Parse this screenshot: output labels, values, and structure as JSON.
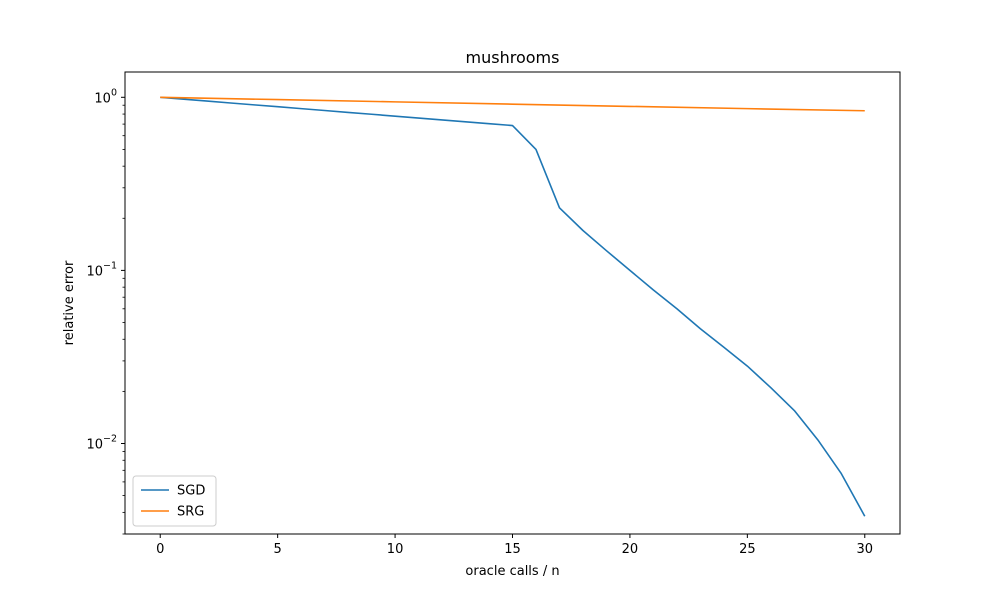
{
  "chart_data": {
    "type": "line",
    "title": "mushrooms",
    "xlabel": "oracle calls / n",
    "ylabel": "relative error",
    "yscale": "log",
    "xlim": [
      -1.5,
      31.5
    ],
    "ylim": [
      0.003,
      1.4
    ],
    "xticks": [
      0,
      5,
      10,
      15,
      20,
      25,
      30
    ],
    "yticks": [
      {
        "value": 1,
        "label_base": "10",
        "label_exp": "0"
      },
      {
        "value": 0.1,
        "label_base": "10",
        "label_exp": "−1"
      },
      {
        "value": 0.01,
        "label_base": "10",
        "label_exp": "−2"
      }
    ],
    "grid": false,
    "legend_position": "lower-left",
    "series": [
      {
        "name": "SGD",
        "color": "#1f77b4",
        "x": [
          0,
          1,
          2,
          3,
          4,
          5,
          6,
          7,
          8,
          9,
          10,
          11,
          12,
          13,
          14,
          15,
          16,
          17,
          18,
          19,
          20,
          21,
          22,
          23,
          24,
          25,
          26,
          27,
          28,
          29,
          30
        ],
        "y": [
          1.0,
          0.975,
          0.951,
          0.927,
          0.904,
          0.882,
          0.86,
          0.839,
          0.818,
          0.798,
          0.778,
          0.759,
          0.74,
          0.722,
          0.704,
          0.687,
          0.5,
          0.23,
          0.17,
          0.13,
          0.1,
          0.077,
          0.06,
          0.046,
          0.036,
          0.028,
          0.021,
          0.0155,
          0.0105,
          0.0067,
          0.0038
        ]
      },
      {
        "name": "SRG",
        "color": "#ff7f0e",
        "x": [
          0,
          5,
          10,
          15,
          20,
          25,
          30
        ],
        "y": [
          1.0,
          0.97,
          0.941,
          0.913,
          0.886,
          0.86,
          0.836
        ]
      }
    ]
  }
}
